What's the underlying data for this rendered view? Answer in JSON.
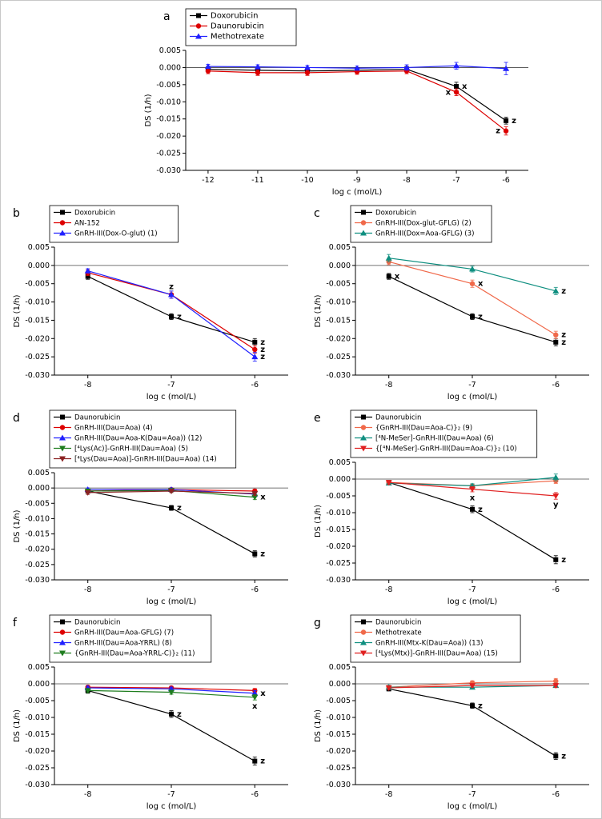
{
  "figure": {
    "background": "#ffffff",
    "xlabel": "log c (mol/L)",
    "ylabel": "DS (1/h)"
  },
  "chart_data": [
    {
      "type": "line",
      "panel": "a",
      "xlabel": "log c (mol/L)",
      "ylabel": "DS (1/h)",
      "x": [
        -12,
        -11,
        -10,
        -9,
        -8,
        -7,
        -6
      ],
      "xlim": [
        -12.45,
        -5.55
      ],
      "ylim": [
        -0.03,
        0.005
      ],
      "yticks": [
        0.005,
        0.0,
        -0.005,
        -0.01,
        -0.015,
        -0.02,
        -0.025,
        -0.03
      ],
      "zero_line": true,
      "legend": {
        "position": "top-center"
      },
      "series": [
        {
          "name": "Doxorubicin",
          "color": "#000000",
          "marker": "square",
          "values": [
            -0.0005,
            -0.0008,
            -0.001,
            -0.0008,
            -0.0005,
            -0.0055,
            -0.0155
          ],
          "err": [
            0.0008,
            0.0008,
            0.0008,
            0.0008,
            0.0008,
            0.0012,
            0.001
          ],
          "ann": [
            {
              "x": -7,
              "label": "x",
              "side": "right"
            },
            {
              "x": -6,
              "label": "z",
              "side": "right"
            }
          ]
        },
        {
          "name": "Daunorubicin",
          "color": "#dd0000",
          "marker": "circle",
          "values": [
            -0.001,
            -0.0015,
            -0.0015,
            -0.0012,
            -0.001,
            -0.0072,
            -0.0185
          ],
          "err": [
            0.0008,
            0.0008,
            0.0008,
            0.0008,
            0.0008,
            0.001,
            0.0012
          ],
          "ann": [
            {
              "x": -7,
              "label": "x",
              "side": "left"
            },
            {
              "x": -6,
              "label": "z",
              "side": "left"
            }
          ]
        },
        {
          "name": "Methotrexate",
          "color": "#2020ff",
          "marker": "triangle-up",
          "values": [
            0.0003,
            0.0002,
            0.0,
            -0.0002,
            0.0,
            0.0005,
            -0.0003
          ],
          "err": [
            0.0006,
            0.0006,
            0.0006,
            0.0006,
            0.0008,
            0.001,
            0.0018
          ],
          "ann": []
        }
      ]
    },
    {
      "type": "line",
      "panel": "b",
      "xlabel": "log c (mol/L)",
      "ylabel": "DS (1/h)",
      "x": [
        -8,
        -7,
        -6
      ],
      "xlim": [
        -8.4,
        -5.6
      ],
      "ylim": [
        -0.03,
        0.005
      ],
      "yticks": [
        0.005,
        0.0,
        -0.005,
        -0.01,
        -0.015,
        -0.02,
        -0.025,
        -0.03
      ],
      "zero_line": true,
      "legend": {
        "position": "top-left"
      },
      "series": [
        {
          "name": "Doxorubicin",
          "color": "#000000",
          "marker": "square",
          "values": [
            -0.003,
            -0.014,
            -0.021
          ],
          "err": [
            0.0008,
            0.0008,
            0.001
          ],
          "ann": [
            {
              "x": -7,
              "label": "z",
              "side": "right"
            },
            {
              "x": -6,
              "label": "z",
              "side": "right"
            }
          ]
        },
        {
          "name": "AN-152",
          "color": "#dd0000",
          "marker": "circle",
          "values": [
            -0.002,
            -0.008,
            -0.023
          ],
          "err": [
            0.0008,
            0.001,
            0.001
          ],
          "ann": [
            {
              "x": -7,
              "label": "z",
              "side": "above"
            },
            {
              "x": -6,
              "label": "z",
              "side": "right"
            }
          ]
        },
        {
          "name": "GnRH-III(Dox-O-glut) (1)",
          "color": "#2020ff",
          "marker": "triangle-up",
          "values": [
            -0.0015,
            -0.008,
            -0.025
          ],
          "err": [
            0.0006,
            0.001,
            0.0012
          ],
          "ann": [
            {
              "x": -6,
              "label": "z",
              "side": "right"
            }
          ]
        }
      ]
    },
    {
      "type": "line",
      "panel": "c",
      "xlabel": "log c (mol/L)",
      "ylabel": "DS (1/h)",
      "x": [
        -8,
        -7,
        -6
      ],
      "xlim": [
        -8.4,
        -5.6
      ],
      "ylim": [
        -0.03,
        0.005
      ],
      "yticks": [
        0.005,
        0.0,
        -0.005,
        -0.01,
        -0.015,
        -0.02,
        -0.025,
        -0.03
      ],
      "zero_line": true,
      "legend": {
        "position": "top-left"
      },
      "series": [
        {
          "name": "Doxorubicin",
          "color": "#000000",
          "marker": "square",
          "values": [
            -0.003,
            -0.014,
            -0.021
          ],
          "err": [
            0.0008,
            0.0008,
            0.001
          ],
          "ann": [
            {
              "x": -8,
              "label": "x",
              "side": "right"
            },
            {
              "x": -7,
              "label": "z",
              "side": "right"
            },
            {
              "x": -6,
              "label": "z",
              "side": "right"
            }
          ]
        },
        {
          "name": "GnRH-III(Dox-glut-GFLG) (2)",
          "color": "#f0694a",
          "marker": "circle",
          "values": [
            0.001,
            -0.005,
            -0.019
          ],
          "err": [
            0.0008,
            0.001,
            0.001
          ],
          "ann": [
            {
              "x": -7,
              "label": "x",
              "side": "right"
            },
            {
              "x": -6,
              "label": "z",
              "side": "right"
            }
          ]
        },
        {
          "name": "GnRH-III(Dox=Aoa-GFLG) (3)",
          "color": "#0f8f80",
          "marker": "triangle-up",
          "values": [
            0.002,
            -0.001,
            -0.007
          ],
          "err": [
            0.001,
            0.0008,
            0.001
          ],
          "ann": [
            {
              "x": -6,
              "label": "z",
              "side": "right"
            }
          ]
        }
      ]
    },
    {
      "type": "line",
      "panel": "d",
      "xlabel": "log c (mol/L)",
      "ylabel": "DS (1/h)",
      "x": [
        -8,
        -7,
        -6
      ],
      "xlim": [
        -8.4,
        -5.6
      ],
      "ylim": [
        -0.03,
        0.005
      ],
      "yticks": [
        0.005,
        0.0,
        -0.005,
        -0.01,
        -0.015,
        -0.02,
        -0.025,
        -0.03
      ],
      "zero_line": true,
      "legend": {
        "position": "top-left"
      },
      "series": [
        {
          "name": "Daunorubicin",
          "color": "#000000",
          "marker": "square",
          "values": [
            -0.001,
            -0.0065,
            -0.0215
          ],
          "err": [
            0.0006,
            0.0008,
            0.001
          ],
          "ann": [
            {
              "x": -7,
              "label": "z",
              "side": "right"
            },
            {
              "x": -6,
              "label": "z",
              "side": "right"
            }
          ]
        },
        {
          "name": "GnRH-III(Dau=Aoa) (4)",
          "color": "#dd0000",
          "marker": "circle",
          "values": [
            -0.001,
            -0.0005,
            -0.001
          ],
          "err": [
            0.0005,
            0.0005,
            0.0006
          ],
          "ann": []
        },
        {
          "name": "GnRH-III(Dau=Aoa-K(Dau=Aoa)) (12)",
          "color": "#2020ff",
          "marker": "triangle-up",
          "values": [
            -0.0005,
            -0.0005,
            -0.002
          ],
          "err": [
            0.0005,
            0.0005,
            0.0008
          ],
          "ann": []
        },
        {
          "name": "[⁴Lys(Ac)]-GnRH-III(Dau=Aoa) (5)",
          "color": "#1e7d1e",
          "marker": "triangle-down",
          "values": [
            -0.001,
            -0.0008,
            -0.003
          ],
          "err": [
            0.0005,
            0.0005,
            0.0008
          ],
          "ann": [
            {
              "x": -6,
              "label": "x",
              "side": "right"
            }
          ]
        },
        {
          "name": "[⁴Lys(Dau=Aoa)]-GnRH-III(Dau=Aoa) (14)",
          "color": "#8b2222",
          "marker": "triangle-down",
          "values": [
            -0.0015,
            -0.001,
            -0.0018
          ],
          "err": [
            0.0006,
            0.0005,
            0.0006
          ],
          "ann": []
        }
      ]
    },
    {
      "type": "line",
      "panel": "e",
      "xlabel": "log c (mol/L)",
      "ylabel": "DS (1/h)",
      "x": [
        -8,
        -7,
        -6
      ],
      "xlim": [
        -8.4,
        -5.6
      ],
      "ylim": [
        -0.03,
        0.005
      ],
      "yticks": [
        0.005,
        0.0,
        -0.005,
        -0.01,
        -0.015,
        -0.02,
        -0.025,
        -0.03
      ],
      "zero_line": true,
      "legend": {
        "position": "top-left"
      },
      "series": [
        {
          "name": "Daunorubicin",
          "color": "#000000",
          "marker": "square",
          "values": [
            -0.001,
            -0.009,
            -0.024
          ],
          "err": [
            0.0006,
            0.001,
            0.0012
          ],
          "ann": [
            {
              "x": -7,
              "label": "z",
              "side": "right"
            },
            {
              "x": -6,
              "label": "z",
              "side": "right"
            }
          ]
        },
        {
          "name": "{GnRH-III(Dau=Aoa-C)}₂ (9)",
          "color": "#f0694a",
          "marker": "circle",
          "values": [
            -0.001,
            -0.002,
            -0.0005
          ],
          "err": [
            0.0006,
            0.0006,
            0.0008
          ],
          "ann": []
        },
        {
          "name": "[⁴N-MeSer]-GnRH-III(Dau=Aoa) (6)",
          "color": "#0f8f80",
          "marker": "triangle-up",
          "values": [
            -0.0012,
            -0.002,
            0.0005
          ],
          "err": [
            0.0006,
            0.0006,
            0.001
          ],
          "ann": []
        },
        {
          "name": "{[⁴N-MeSer]-GnRH-III(Dau=Aoa-C)}₂ (10)",
          "color": "#e02020",
          "marker": "triangle-down",
          "values": [
            -0.001,
            -0.003,
            -0.005
          ],
          "err": [
            0.0006,
            0.0008,
            0.001
          ],
          "ann": [
            {
              "x": -7,
              "label": "x",
              "side": "below"
            },
            {
              "x": -6,
              "label": "y",
              "side": "below"
            }
          ]
        }
      ]
    },
    {
      "type": "line",
      "panel": "f",
      "xlabel": "log c (mol/L)",
      "ylabel": "DS (1/h)",
      "x": [
        -8,
        -7,
        -6
      ],
      "xlim": [
        -8.4,
        -5.6
      ],
      "ylim": [
        -0.03,
        0.005
      ],
      "yticks": [
        0.005,
        0.0,
        -0.005,
        -0.01,
        -0.015,
        -0.02,
        -0.025,
        -0.03
      ],
      "zero_line": true,
      "legend": {
        "position": "top-left"
      },
      "series": [
        {
          "name": "Daunorubicin",
          "color": "#000000",
          "marker": "square",
          "values": [
            -0.002,
            -0.009,
            -0.023
          ],
          "err": [
            0.0008,
            0.001,
            0.0012
          ],
          "ann": [
            {
              "x": -7,
              "label": "z",
              "side": "right"
            },
            {
              "x": -6,
              "label": "z",
              "side": "right"
            }
          ]
        },
        {
          "name": "GnRH-III(Dau=Aoa-GFLG) (7)",
          "color": "#dd0000",
          "marker": "circle",
          "values": [
            -0.001,
            -0.0012,
            -0.002
          ],
          "err": [
            0.0005,
            0.0005,
            0.0006
          ],
          "ann": []
        },
        {
          "name": "GnRH-III(Dau=Aoa-YRRL) (8)",
          "color": "#2020ff",
          "marker": "triangle-up",
          "values": [
            -0.0012,
            -0.0015,
            -0.0028
          ],
          "err": [
            0.0005,
            0.0005,
            0.0008
          ],
          "ann": [
            {
              "x": -6,
              "label": "x",
              "side": "right"
            }
          ]
        },
        {
          "name": "{GnRH-III(Dau=Aoa-YRRL-C)}₂ (11)",
          "color": "#1e7d1e",
          "marker": "triangle-down",
          "values": [
            -0.002,
            -0.0025,
            -0.004
          ],
          "err": [
            0.0006,
            0.0006,
            0.0008
          ],
          "ann": [
            {
              "x": -6,
              "label": "x",
              "side": "below"
            }
          ]
        }
      ]
    },
    {
      "type": "line",
      "panel": "g",
      "xlabel": "log c (mol/L)",
      "ylabel": "DS (1/h)",
      "x": [
        -8,
        -7,
        -6
      ],
      "xlim": [
        -8.4,
        -5.6
      ],
      "ylim": [
        -0.03,
        0.005
      ],
      "yticks": [
        0.005,
        0.0,
        -0.005,
        -0.01,
        -0.015,
        -0.02,
        -0.025,
        -0.03
      ],
      "zero_line": true,
      "legend": {
        "position": "top-left"
      },
      "series": [
        {
          "name": "Daunorubicin",
          "color": "#000000",
          "marker": "square",
          "values": [
            -0.0015,
            -0.0065,
            -0.0215
          ],
          "err": [
            0.0006,
            0.0008,
            0.001
          ],
          "ann": [
            {
              "x": -7,
              "label": "z",
              "side": "right"
            },
            {
              "x": -6,
              "label": "z",
              "side": "right"
            }
          ]
        },
        {
          "name": "Methotrexate",
          "color": "#f0694a",
          "marker": "circle",
          "values": [
            -0.001,
            0.0003,
            0.0008
          ],
          "err": [
            0.0006,
            0.0006,
            0.0008
          ],
          "ann": []
        },
        {
          "name": "GnRH-III(Mtx-K(Dau=Aoa)) (13)",
          "color": "#0f8f80",
          "marker": "triangle-up",
          "values": [
            -0.001,
            -0.001,
            -0.0005
          ],
          "err": [
            0.0005,
            0.0005,
            0.0006
          ],
          "ann": []
        },
        {
          "name": "[⁴Lys(Mtx)]-GnRH-III(Dau=Aoa) (15)",
          "color": "#e02020",
          "marker": "triangle-down",
          "values": [
            -0.0012,
            -0.0005,
            -0.0005
          ],
          "err": [
            0.0005,
            0.0005,
            0.0006
          ],
          "ann": []
        }
      ]
    }
  ]
}
